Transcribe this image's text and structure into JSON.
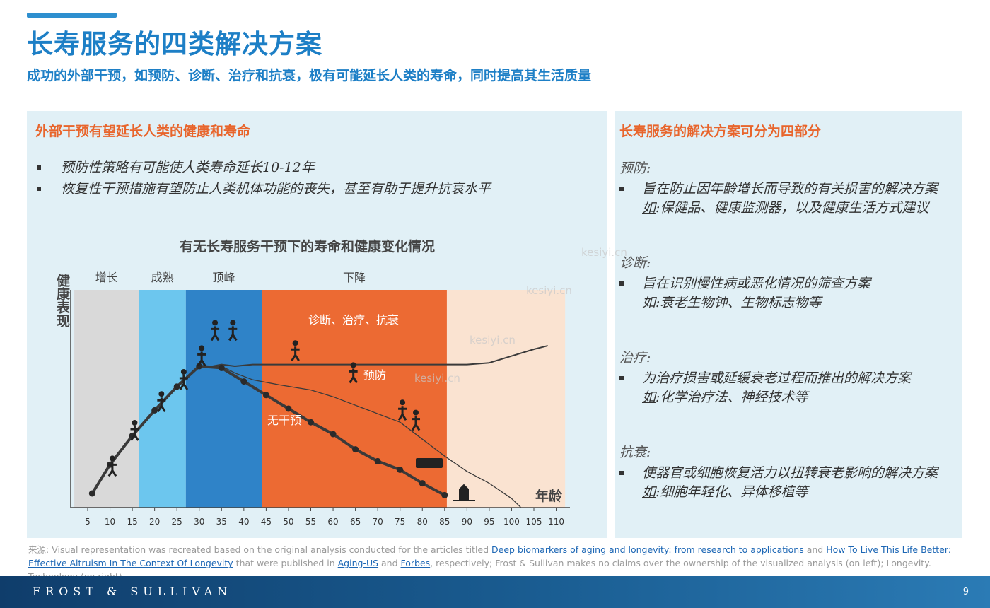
{
  "header": {
    "title": "长寿服务的四类解决方案",
    "subtitle": "成功的外部干预，如预防、诊断、治疗和抗衰，极有可能延长人类的寿命，同时提高其生活质量"
  },
  "left_panel": {
    "heading": "外部干预有望延长人类的健康和寿命",
    "bullets": [
      "预防性策略有可能使人类寿命延长10-12年",
      "恢复性干预措施有望防止人类机体功能的丧失，甚至有助于提升抗衰水平"
    ]
  },
  "right_panel": {
    "heading": "长寿服务的解决方案可分为四部分",
    "sections": [
      {
        "name": "预防:",
        "desc": "旨在防止因年龄增长而导致的有关损害的解决方案",
        "eg_label": "如",
        "eg": ":保健品、健康监测器，以及健康生活方式建议"
      },
      {
        "name": "诊断:",
        "desc": "旨在识别慢性病或恶化情况的筛查方案",
        "eg_label": "如",
        "eg": ":衰老生物钟、生物标志物等"
      },
      {
        "name": "治疗:",
        "desc": "为治疗损害或延缓衰老过程而推出的解决方案",
        "eg_label": "如",
        "eg": ":化学治疗法、神经技术等"
      },
      {
        "name": "抗衰:",
        "desc": "使器官或细胞恢复活力以扭转衰老影响的解决方案",
        "eg_label": "如",
        "eg": ":细胞年轻化、异体移植等"
      }
    ]
  },
  "chart_data": {
    "type": "line",
    "title": "有无长寿服务干预下的寿命和健康变化情况",
    "xlabel": "年龄",
    "ylabel": "健康表现",
    "xticks": [
      5,
      10,
      15,
      20,
      25,
      30,
      35,
      40,
      45,
      50,
      55,
      60,
      65,
      70,
      75,
      80,
      85,
      90,
      95,
      100,
      105,
      110
    ],
    "xlim": [
      3,
      112
    ],
    "ylim": [
      0,
      100
    ],
    "phases": [
      {
        "label": "增长",
        "from": 2,
        "to": 16.5,
        "color": "#d9d9d9"
      },
      {
        "label": "成熟",
        "from": 16.5,
        "to": 27,
        "color": "#6cc6ee"
      },
      {
        "label": "顶峰",
        "from": 27,
        "to": 44,
        "color": "#2f83c8"
      },
      {
        "label": "下降",
        "from": 44,
        "to": 85.5,
        "color": "#ec6a33"
      },
      {
        "label": "",
        "from": 85.5,
        "to": 112,
        "color": "#fae3d1"
      }
    ],
    "annotations": [
      "诊断、治疗、抗衰",
      "预防",
      "无干预"
    ],
    "series": [
      {
        "name": "诊断、治疗、抗衰",
        "color": "#3a3a3a",
        "width": 2,
        "x": [
          33,
          35,
          38,
          42,
          50,
          60,
          70,
          78,
          85,
          90,
          95,
          100,
          105,
          108
        ],
        "y": [
          80,
          81,
          80,
          81,
          81,
          81,
          81,
          81,
          81,
          81,
          82,
          86,
          90,
          92
        ]
      },
      {
        "name": "预防",
        "color": "#3a3a3a",
        "width": 1.3,
        "x": [
          35,
          38,
          42,
          48,
          55,
          60,
          65,
          70,
          75,
          80,
          85,
          90,
          95,
          100,
          102
        ],
        "y": [
          80,
          76,
          72,
          69,
          66,
          62,
          57,
          52,
          47,
          37,
          27,
          18,
          11,
          2,
          -3
        ]
      },
      {
        "name": "无干预",
        "color": "#3a3a3a",
        "width": 4,
        "x": [
          6,
          10,
          15,
          20,
          25,
          30,
          35,
          40,
          45,
          50,
          55,
          60,
          65,
          70,
          75,
          80,
          85
        ],
        "y": [
          5,
          22,
          39,
          54,
          68,
          80,
          79,
          71,
          63,
          55,
          47,
          40,
          31,
          24,
          19,
          11,
          4
        ],
        "markers": true
      }
    ]
  },
  "source": {
    "prefix_label": "来源:",
    "text1": " Visual representation was recreated based on the original analysis conducted for the articles titled ",
    "link1": "Deep biomarkers of aging and longevity: from research to applications",
    "text2": " and ",
    "link2": "How To Live This Life Better: Effective Altruism In The Context Of Longevity",
    "text3": " that were published in ",
    "link3": "Aging-US",
    "text4": " and ",
    "link4": "Forbes",
    "text5": ", respectively; Frost & Sullivan makes no claims over the ownership of the visualized analysis (on left); Longevity. Technology (on right)"
  },
  "footer": {
    "brand": "FROST & SULLIVAN",
    "page": "9"
  },
  "watermarks": [
    "kesiyi.cn",
    "kesiyi.cn",
    "kesiyi.cn",
    "kesiyi.cn"
  ]
}
